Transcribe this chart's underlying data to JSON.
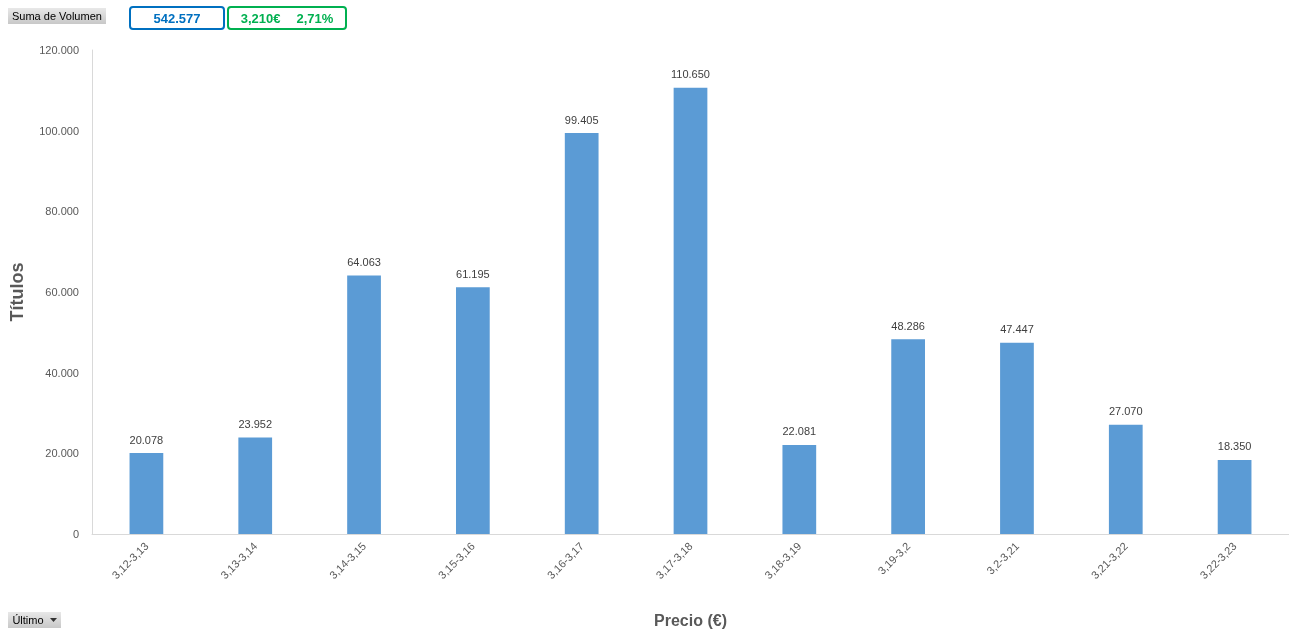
{
  "chart_data": {
    "type": "bar",
    "xlabel": "Precio (€)",
    "ylabel": "Títulos",
    "categories": [
      "3,12-3,13",
      "3,13-3,14",
      "3,14-3,15",
      "3,15-3,16",
      "3,16-3,17",
      "3,17-3,18",
      "3,18-3,19",
      "3,19-3,2",
      "3,2-3,21",
      "3,21-3,22",
      "3,22-3,23"
    ],
    "values": [
      20078,
      23952,
      64063,
      61195,
      99405,
      110650,
      22081,
      48286,
      47447,
      27070,
      18350
    ],
    "value_labels": [
      "20.078",
      "23.952",
      "64.063",
      "61.195",
      "99.405",
      "110.650",
      "22.081",
      "48.286",
      "47.447",
      "27.070",
      "18.350"
    ],
    "color": "#5b9bd5",
    "ylim": [
      0,
      120000
    ],
    "yticks": [
      0,
      {
        "value": 20000,
        "label": "20.000"
      },
      {
        "value": 40000,
        "label": "40.000"
      },
      {
        "value": 60000,
        "label": "60.000"
      },
      {
        "value": 80000,
        "label": "80.000"
      },
      {
        "value": 100000,
        "label": "100.000"
      },
      {
        "value": 120000,
        "label": "120.000"
      }
    ],
    "annotations": [
      "Suma de Volumen",
      "542.577",
      "3,210€",
      "2,71%",
      "Último"
    ]
  }
}
